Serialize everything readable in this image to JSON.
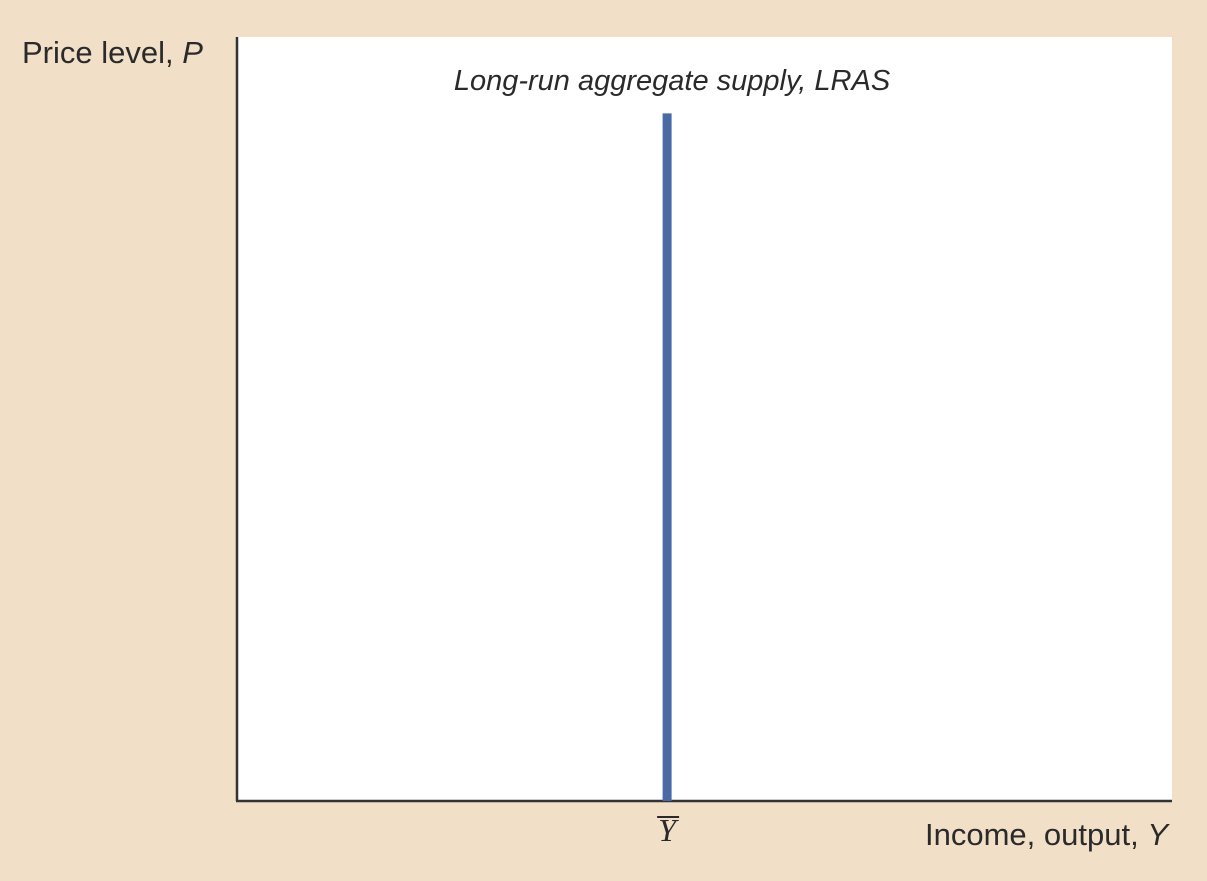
{
  "chart_data": {
    "type": "line",
    "xlabel": {
      "text": "Income, output, ",
      "var": "Y"
    },
    "ylabel": {
      "text": "Price level, ",
      "var": "P"
    },
    "xlim": [
      0,
      1
    ],
    "ylim": [
      0,
      1
    ],
    "grid": false,
    "series": [
      {
        "name": "Long-run aggregate supply, LRAS",
        "color": "#4a6aa5",
        "x": [
          0.46,
          0.46
        ],
        "y": [
          0,
          0.9
        ]
      }
    ],
    "x_ticks": [
      {
        "value": 0.46,
        "label": "Y",
        "overline": true
      }
    ]
  }
}
